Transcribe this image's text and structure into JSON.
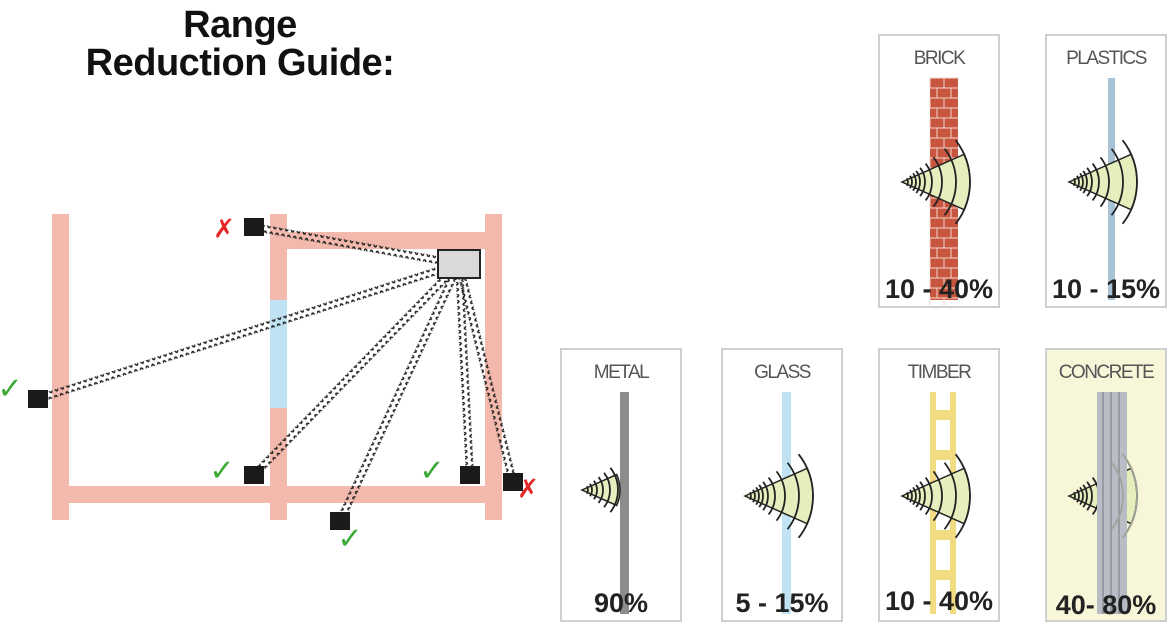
{
  "title": {
    "line1": "Range",
    "line2": "Reduction Guide:"
  },
  "floorplan": {
    "receivers": [
      {
        "status": "fail",
        "mark": "✗"
      },
      {
        "status": "pass",
        "mark": "✓"
      },
      {
        "status": "pass",
        "mark": "✓"
      },
      {
        "status": "pass",
        "mark": "✓"
      },
      {
        "status": "pass",
        "mark": "✓"
      },
      {
        "status": "fail",
        "mark": "✗"
      }
    ]
  },
  "materials": [
    {
      "label": "BRICK",
      "reduction": "10 - 40%",
      "pattern": "brick"
    },
    {
      "label": "PLASTICS",
      "reduction": "10 - 15%",
      "pattern": "plastic"
    },
    {
      "label": "METAL",
      "reduction": "90%",
      "pattern": "metal"
    },
    {
      "label": "GLASS",
      "reduction": "5 - 15%",
      "pattern": "glass"
    },
    {
      "label": "TIMBER",
      "reduction": "10 - 40%",
      "pattern": "timber"
    },
    {
      "label": "CONCRETE",
      "reduction": "40- 80%",
      "pattern": "concrete"
    }
  ],
  "colors": {
    "wall": "#f4b9ad",
    "glass_window": "#bfe3f3",
    "pass": "#3aaa35",
    "fail": "#e32626",
    "brick": "#c8563f",
    "plastic": "#a8c2d6",
    "metal": "#8c8c8c",
    "glass": "#bfe3f3",
    "timber": "#f2dc82",
    "concrete": "#b8bcc4",
    "signal_fill": "#e5efbd"
  }
}
